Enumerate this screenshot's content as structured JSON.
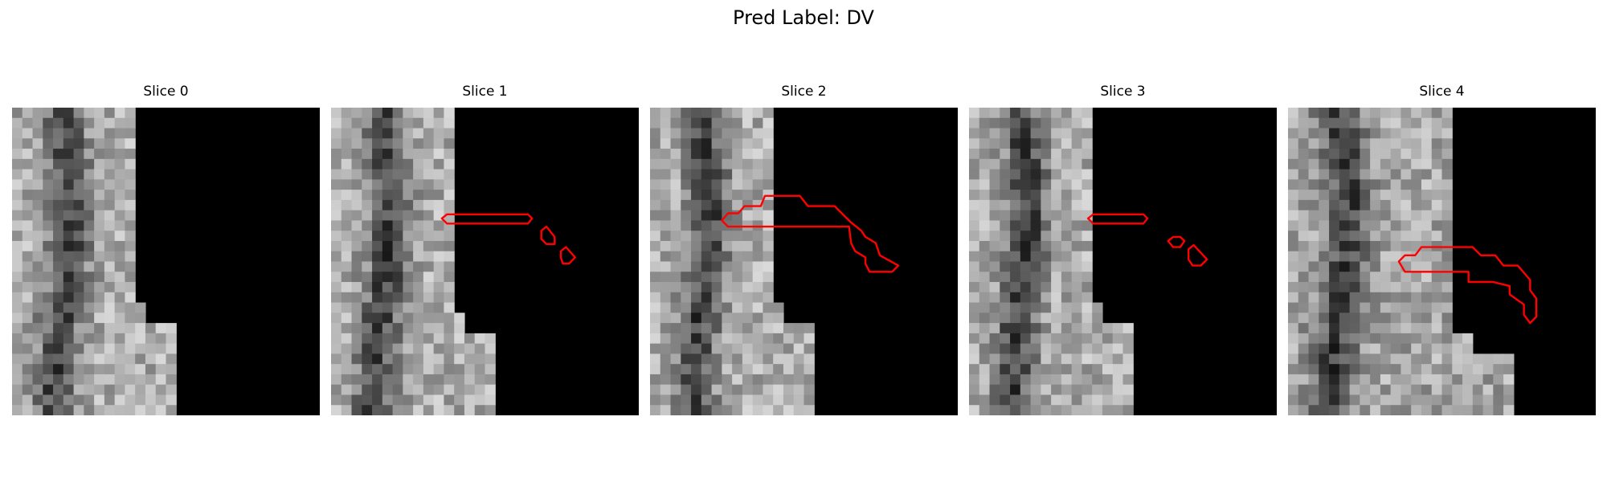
{
  "figure": {
    "title": "Pred Label: DV"
  },
  "panels": [
    {
      "title": "Slice 0"
    },
    {
      "title": "Slice 1"
    },
    {
      "title": "Slice 2"
    },
    {
      "title": "Slice 3"
    },
    {
      "title": "Slice 4"
    }
  ],
  "colors": {
    "contour": "#ff0000",
    "background": "#000000"
  }
}
